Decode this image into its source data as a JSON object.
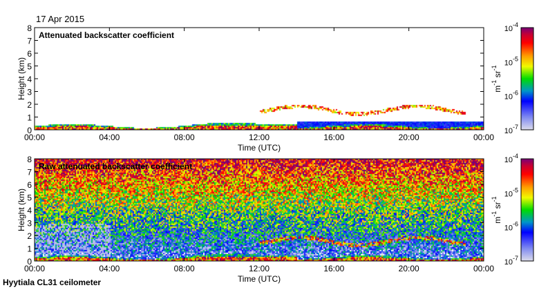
{
  "date": "17 Apr 2015",
  "footer": "Hyytiala CL31 ceilometer",
  "chart_data": [
    {
      "type": "heatmap",
      "title": "Attenuated backscatter coefficient",
      "xlabel": "Time (UTC)",
      "ylabel": "Height (km)",
      "xticks": [
        "00:00",
        "04:00",
        "08:00",
        "12:00",
        "16:00",
        "20:00",
        "00:00"
      ],
      "yticks": [
        "0",
        "1",
        "2",
        "3",
        "4",
        "5",
        "6",
        "7",
        "8"
      ],
      "ylim": [
        0,
        8
      ],
      "xlim_hours": [
        0,
        24
      ],
      "colorbar": {
        "label": "m-1 sr-1",
        "ticks": [
          "10-7",
          "10-6",
          "10-5",
          "10-4"
        ],
        "range": [
          1e-07,
          0.0001
        ],
        "scale": "log"
      },
      "features": {
        "boundary_layer_top_km": 0.5,
        "cloud_layer_km": [
          1.5,
          2.0
        ],
        "cloud_period_hours": [
          12,
          23
        ]
      }
    },
    {
      "type": "heatmap",
      "title": "Raw attenuated backscatter coefficient",
      "xlabel": "Time (UTC)",
      "ylabel": "Height (km)",
      "xticks": [
        "00:00",
        "04:00",
        "08:00",
        "12:00",
        "16:00",
        "20:00",
        "00:00"
      ],
      "yticks": [
        "0",
        "1",
        "2",
        "3",
        "4",
        "5",
        "6",
        "7",
        "8"
      ],
      "ylim": [
        0,
        8
      ],
      "xlim_hours": [
        0,
        24
      ],
      "colorbar": {
        "label": "m-1 sr-1",
        "ticks": [
          "10-7",
          "10-6",
          "10-5",
          "10-4"
        ],
        "range": [
          1e-07,
          0.0001
        ],
        "scale": "log"
      }
    }
  ]
}
